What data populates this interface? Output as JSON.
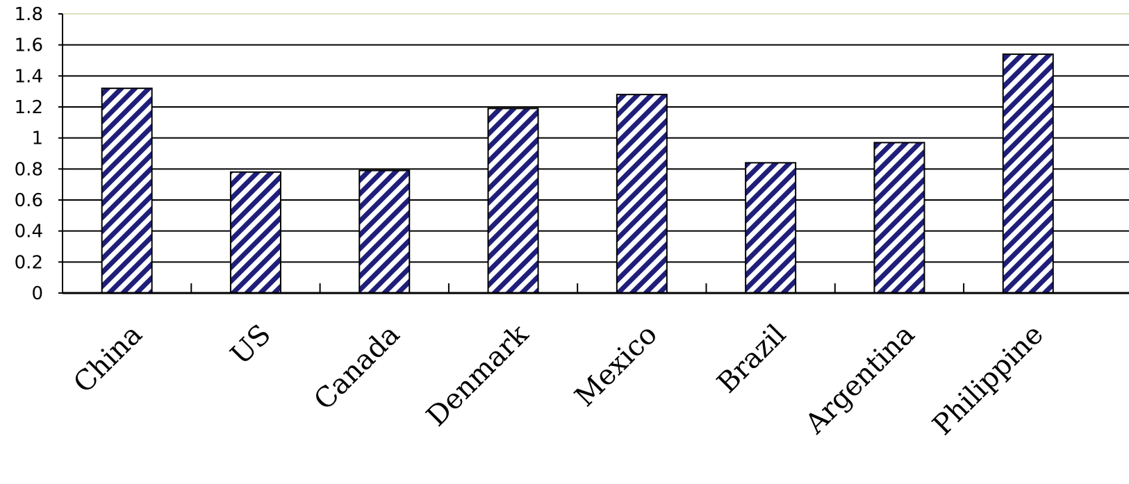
{
  "chart_data": {
    "type": "bar",
    "title": "",
    "xlabel": "",
    "ylabel": "",
    "categories": [
      "China",
      "US",
      "Canada",
      "Denmark",
      "Mexico",
      "Brazil",
      "Argentina",
      "Philippine"
    ],
    "values": [
      1.32,
      0.78,
      0.79,
      1.19,
      1.28,
      0.84,
      0.97,
      1.54
    ],
    "ylim": [
      0,
      1.8
    ],
    "yticks": [
      "0",
      "0.2",
      "0.4",
      "0.6",
      "0.8",
      "1",
      "1.2",
      "1.4",
      "1.6",
      "1.8"
    ],
    "grid": true,
    "legend": "none",
    "bar_fill_pattern": "diagonal-hatch",
    "colors": {
      "hatch": "#1f1f7a",
      "background": "#ffffff",
      "gridline": "#000000",
      "axis": "#000000"
    }
  }
}
